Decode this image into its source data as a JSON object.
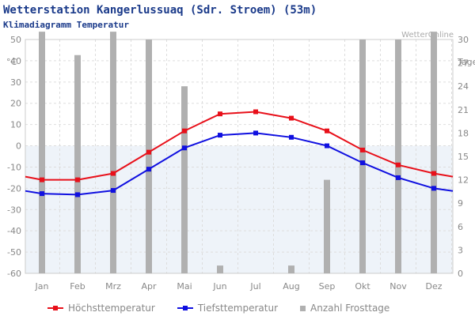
{
  "header": {
    "title": "Wetterstation Kangerlussuaq (Sdr. Stroem) (53m)",
    "subtitle": "Klimadiagramm Temperatur",
    "watermark": "WetterOnline"
  },
  "legend": {
    "high_label": "Höchsttemperatur",
    "low_label": "Tiefsttemperatur",
    "frost_label": "Anzahl Frosttage"
  },
  "chart_data": {
    "type": "line",
    "categories": [
      "Jan",
      "Feb",
      "Mrz",
      "Apr",
      "Mai",
      "Jun",
      "Jul",
      "Aug",
      "Sep",
      "Okt",
      "Nov",
      "Dez"
    ],
    "left_axis": {
      "unit": "°C",
      "ticks": [
        "50",
        "40",
        "30",
        "20",
        "10",
        "0",
        "-10",
        "-20",
        "-30",
        "-40",
        "-50",
        "-60"
      ],
      "ylim": [
        -60,
        50
      ]
    },
    "right_axis": {
      "unit": "Tage",
      "ticks": [
        "30",
        "27",
        "24",
        "21",
        "18",
        "15",
        "12",
        "9",
        "6",
        "3",
        "0"
      ],
      "ylim": [
        0,
        30
      ]
    },
    "series": [
      {
        "name": "Höchsttemperatur",
        "color": "#e8101a",
        "values": [
          -16.0,
          -16.0,
          -13.0,
          -3.0,
          7.0,
          15.0,
          16.0,
          13.0,
          7.0,
          -2.0,
          -9.0,
          -13.0
        ]
      },
      {
        "name": "Tiefsttemperatur",
        "color": "#1010e0",
        "values": [
          -22.5,
          -23.0,
          -21.0,
          -11.0,
          -1.0,
          5.0,
          6.0,
          4.0,
          0.0,
          -8.0,
          -15.0,
          -20.0
        ]
      },
      {
        "name": "Anzahl Frosttage",
        "type": "bar",
        "axis": "right",
        "color": "#b0b0b0",
        "values": [
          31,
          28,
          31,
          30,
          24,
          1,
          0,
          1,
          12,
          30,
          30,
          31
        ]
      }
    ],
    "grid": true,
    "legend_position": "bottom"
  }
}
